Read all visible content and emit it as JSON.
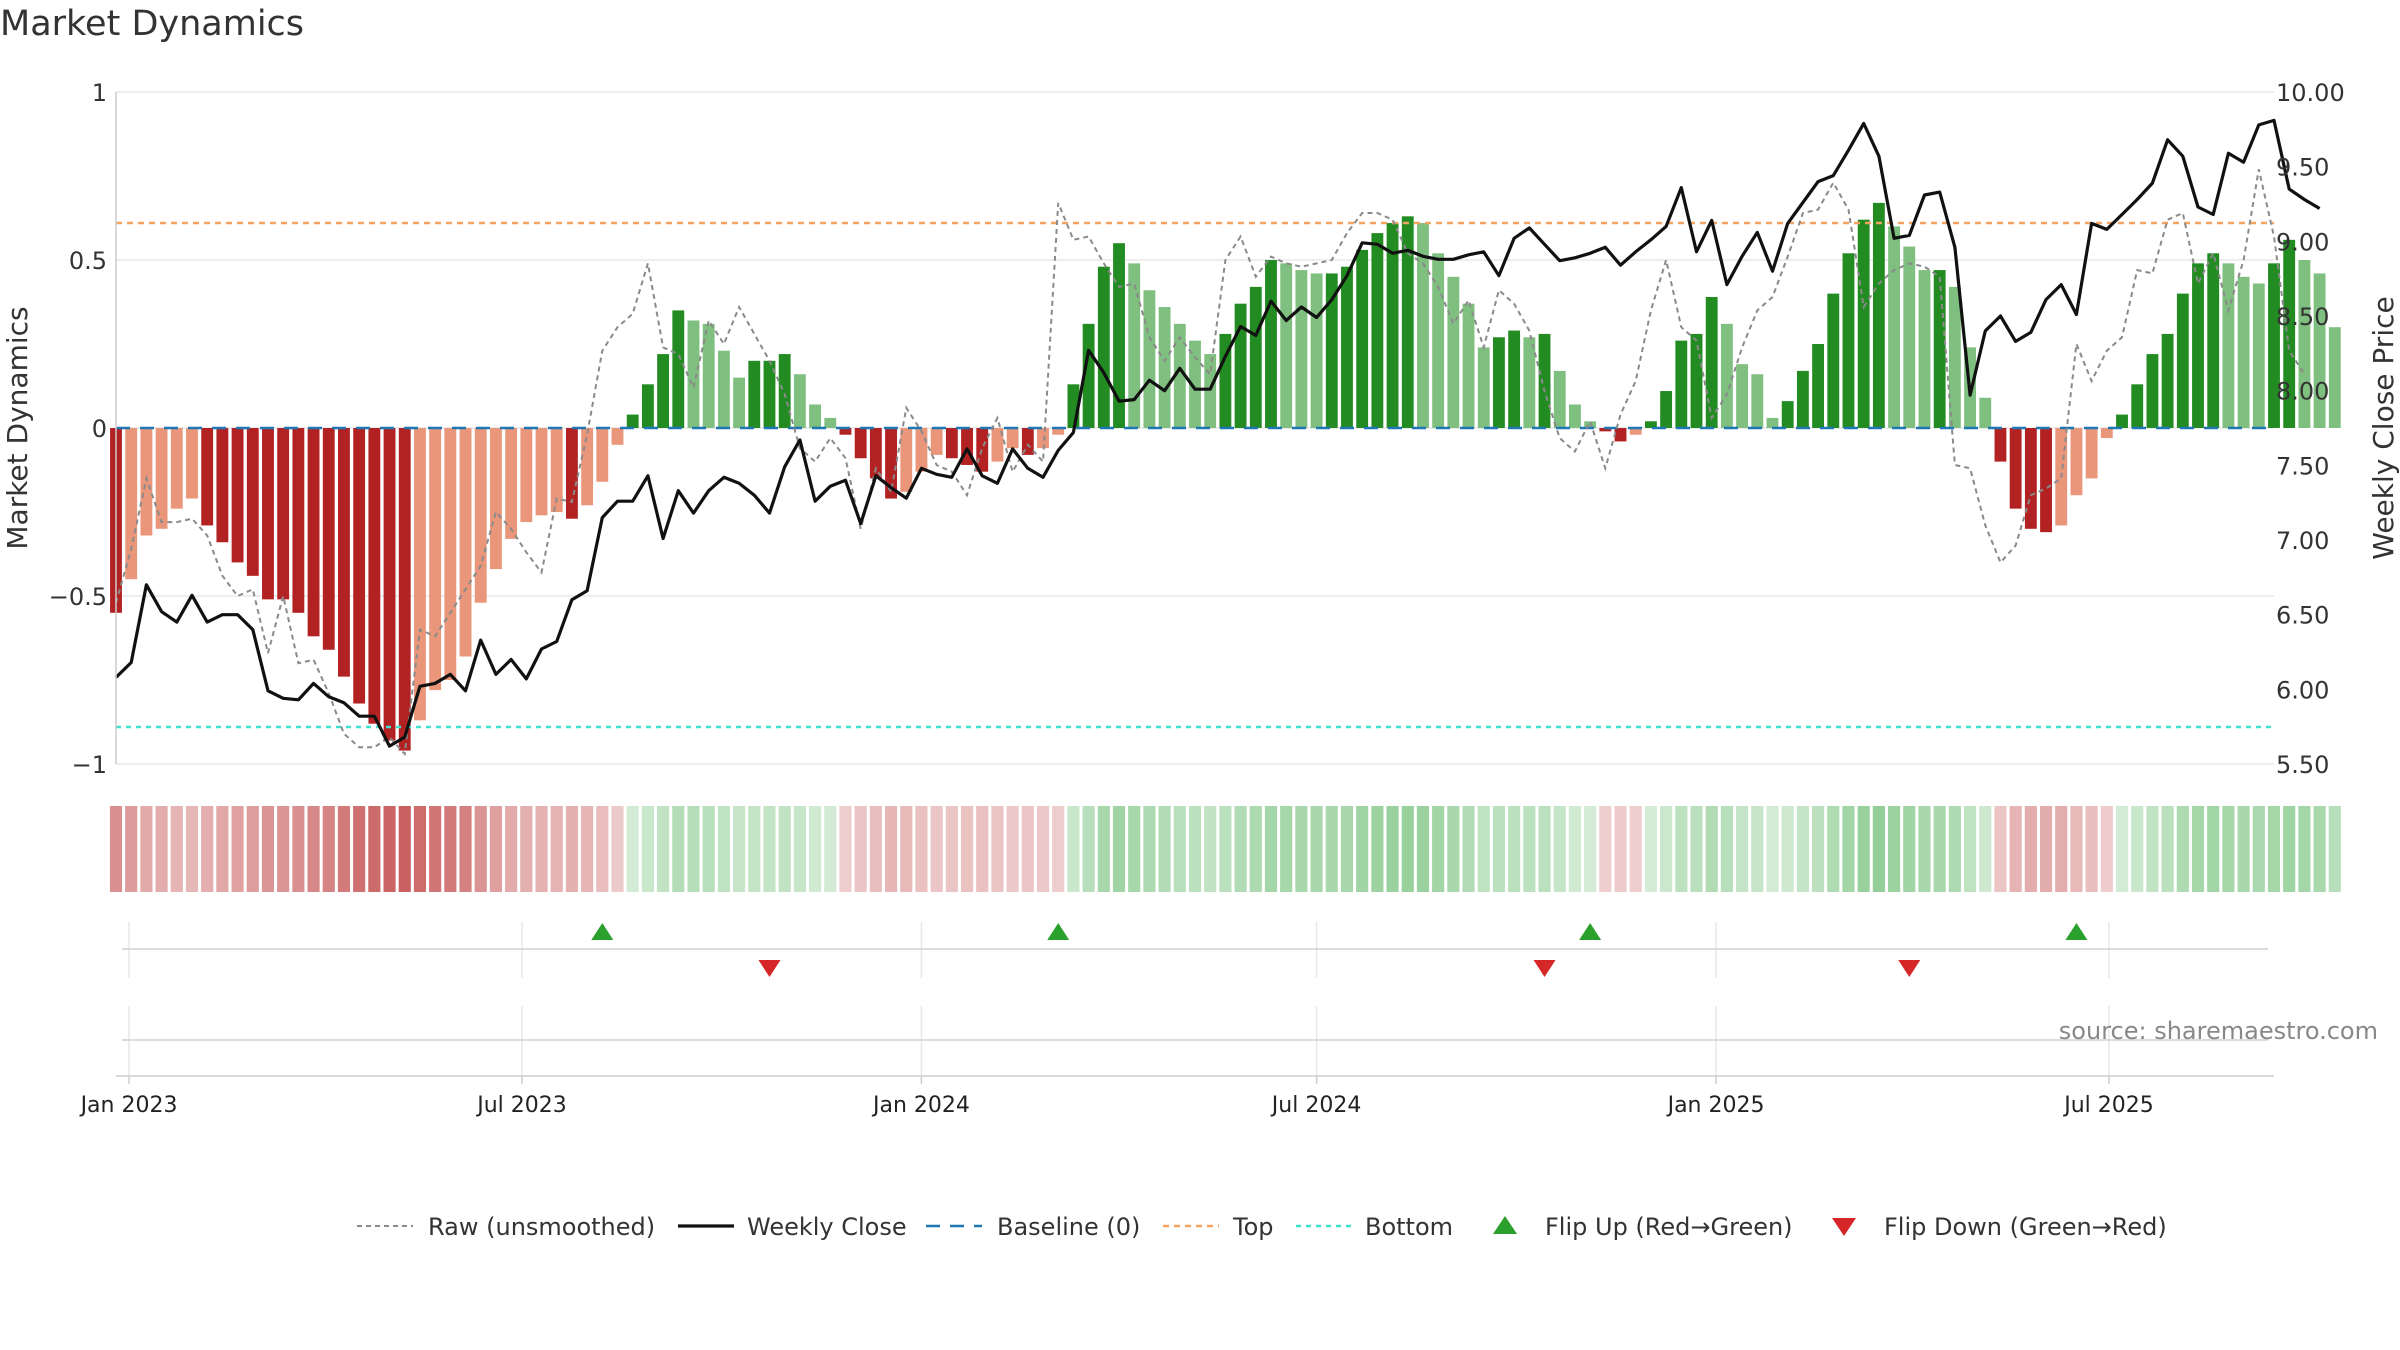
{
  "chart_data": {
    "type": "bar",
    "title": "Market Dynamics",
    "ylabel_left": "Market Dynamics",
    "ylabel_right": "Weekly Close Price",
    "ylim_left": [
      -1,
      1
    ],
    "ylim_right": [
      5.5,
      10.0
    ],
    "yticks_left": [
      {
        "value": 1,
        "label": "1"
      },
      {
        "value": 0.5,
        "label": "0.5"
      },
      {
        "value": 0,
        "label": "0"
      },
      {
        "value": -0.5,
        "label": "−0.5"
      },
      {
        "value": -1,
        "label": "−1"
      }
    ],
    "yticks_right": [
      {
        "value": 10.0,
        "label": "10.00"
      },
      {
        "value": 9.5,
        "label": "9.50"
      },
      {
        "value": 9.0,
        "label": "9.00"
      },
      {
        "value": 8.5,
        "label": "8.50"
      },
      {
        "value": 8.0,
        "label": "8.00"
      },
      {
        "value": 7.5,
        "label": "7.50"
      },
      {
        "value": 7.0,
        "label": "7.00"
      },
      {
        "value": 6.5,
        "label": "6.50"
      },
      {
        "value": 6.0,
        "label": "6.00"
      },
      {
        "value": 5.5,
        "label": "5.50"
      }
    ],
    "x_start": "2022-12-26",
    "x_end": "2025-09-15",
    "week_start": "2022-12-26",
    "xticks": [
      {
        "date": "2023-01-01",
        "label": "Jan 2023"
      },
      {
        "date": "2023-07-01",
        "label": "Jul 2023"
      },
      {
        "date": "2024-01-01",
        "label": "Jan 2024"
      },
      {
        "date": "2024-07-01",
        "label": "Jul 2024"
      },
      {
        "date": "2025-01-01",
        "label": "Jan 2025"
      },
      {
        "date": "2025-07-01",
        "label": "Jul 2025"
      }
    ],
    "top_level": 0.61,
    "bottom_level": -0.89,
    "baseline": 0,
    "colors": {
      "strong_red": "#b22222",
      "light_red": "#e9967a",
      "strong_green": "#228b22",
      "light_green": "#7fbf7f",
      "raw": "#8a8a8a",
      "close": "#111111",
      "baseline": "#1f77b4",
      "top": "#f4a460",
      "bottom": "#40e0d0",
      "flip_up": "#2ca02c",
      "flip_down": "#d62728",
      "grid": "#e8e8e8",
      "axis": "#cccccc"
    },
    "series": [
      {
        "name": "Market Dynamics",
        "values": [
          -0.55,
          -0.45,
          -0.32,
          -0.3,
          -0.24,
          -0.21,
          -0.29,
          -0.34,
          -0.4,
          -0.44,
          -0.51,
          -0.51,
          -0.55,
          -0.62,
          -0.66,
          -0.74,
          -0.82,
          -0.88,
          -0.93,
          -0.96,
          -0.87,
          -0.78,
          -0.75,
          -0.68,
          -0.52,
          -0.42,
          -0.33,
          -0.28,
          -0.26,
          -0.25,
          -0.27,
          -0.23,
          -0.16,
          -0.05,
          0.04,
          0.13,
          0.22,
          0.35,
          0.32,
          0.31,
          0.23,
          0.15,
          0.2,
          0.2,
          0.22,
          0.16,
          0.07,
          0.03,
          -0.02,
          -0.09,
          -0.15,
          -0.21,
          -0.19,
          -0.13,
          -0.08,
          -0.09,
          -0.11,
          -0.13,
          -0.1,
          -0.06,
          -0.08,
          -0.06,
          -0.02,
          0.13,
          0.31,
          0.48,
          0.55,
          0.49,
          0.41,
          0.36,
          0.31,
          0.26,
          0.22,
          0.28,
          0.37,
          0.42,
          0.5,
          0.49,
          0.47,
          0.46,
          0.46,
          0.48,
          0.53,
          0.58,
          0.61,
          0.63,
          0.61,
          0.52,
          0.45,
          0.37,
          0.24,
          0.27,
          0.29,
          0.27,
          0.28,
          0.17,
          0.07,
          0.02,
          -0.01,
          -0.04,
          -0.02,
          0.02,
          0.11,
          0.26,
          0.28,
          0.39,
          0.31,
          0.19,
          0.16,
          0.03,
          0.08,
          0.17,
          0.25,
          0.4,
          0.52,
          0.62,
          0.67,
          0.6,
          0.54,
          0.47,
          0.47,
          0.42,
          0.24,
          0.09,
          -0.1,
          -0.24,
          -0.3,
          -0.31,
          -0.29,
          -0.2,
          -0.15,
          -0.03,
          0.04,
          0.13,
          0.22,
          0.28,
          0.4,
          0.49,
          0.52,
          0.49,
          0.45,
          0.43,
          0.49,
          0.56,
          0.5,
          0.46,
          0.3
        ]
      },
      {
        "name": "Raw (unsmoothed)",
        "values": [
          -0.52,
          -0.36,
          -0.15,
          -0.28,
          -0.28,
          -0.27,
          -0.32,
          -0.44,
          -0.5,
          -0.48,
          -0.67,
          -0.5,
          -0.7,
          -0.69,
          -0.79,
          -0.91,
          -0.95,
          -0.95,
          -0.92,
          -0.97,
          -0.6,
          -0.62,
          -0.55,
          -0.48,
          -0.41,
          -0.25,
          -0.3,
          -0.37,
          -0.43,
          -0.21,
          -0.22,
          -0.02,
          0.23,
          0.3,
          0.34,
          0.49,
          0.24,
          0.22,
          0.12,
          0.32,
          0.25,
          0.36,
          0.28,
          0.2,
          0.1,
          -0.06,
          -0.1,
          -0.03,
          -0.09,
          -0.3,
          -0.12,
          -0.19,
          0.06,
          -0.01,
          -0.11,
          -0.13,
          -0.2,
          -0.06,
          0.03,
          -0.13,
          -0.05,
          -0.1,
          0.67,
          0.56,
          0.57,
          0.49,
          0.42,
          0.43,
          0.27,
          0.2,
          0.27,
          0.21,
          0.16,
          0.5,
          0.57,
          0.45,
          0.51,
          0.49,
          0.48,
          0.49,
          0.5,
          0.58,
          0.64,
          0.64,
          0.62,
          0.52,
          0.49,
          0.42,
          0.31,
          0.38,
          0.24,
          0.41,
          0.37,
          0.29,
          0.11,
          -0.03,
          -0.07,
          0.02,
          -0.12,
          0.04,
          0.14,
          0.35,
          0.5,
          0.3,
          0.26,
          0.03,
          0.1,
          0.24,
          0.35,
          0.39,
          0.51,
          0.64,
          0.65,
          0.73,
          0.65,
          0.36,
          0.43,
          0.47,
          0.49,
          0.48,
          0.45,
          -0.11,
          -0.12,
          -0.29,
          -0.4,
          -0.35,
          -0.2,
          -0.18,
          -0.15,
          0.25,
          0.14,
          0.23,
          0.27,
          0.47,
          0.46,
          0.62,
          0.64,
          0.43,
          0.52,
          0.35,
          0.5,
          0.77,
          0.57,
          0.23,
          0.16
        ]
      },
      {
        "name": "Weekly Close",
        "values": [
          6.08,
          6.18,
          6.7,
          6.52,
          6.45,
          6.63,
          6.45,
          6.5,
          6.5,
          6.4,
          5.99,
          5.94,
          5.93,
          6.04,
          5.95,
          5.91,
          5.82,
          5.82,
          5.62,
          5.68,
          6.02,
          6.04,
          6.1,
          5.99,
          6.33,
          6.1,
          6.2,
          6.07,
          6.27,
          6.32,
          6.6,
          6.66,
          7.15,
          7.26,
          7.26,
          7.43,
          7.01,
          7.33,
          7.18,
          7.33,
          7.42,
          7.38,
          7.3,
          7.18,
          7.49,
          7.67,
          7.26,
          7.36,
          7.4,
          7.11,
          7.43,
          7.35,
          7.28,
          7.48,
          7.44,
          7.42,
          7.61,
          7.43,
          7.38,
          7.61,
          7.48,
          7.42,
          7.6,
          7.72,
          8.27,
          8.12,
          7.93,
          7.94,
          8.07,
          8.0,
          8.15,
          8.01,
          8.01,
          8.23,
          8.43,
          8.37,
          8.6,
          8.47,
          8.56,
          8.49,
          8.61,
          8.77,
          8.99,
          8.98,
          8.92,
          8.94,
          8.9,
          8.88,
          8.88,
          8.91,
          8.93,
          8.77,
          9.02,
          9.09,
          8.98,
          8.87,
          8.89,
          8.92,
          8.96,
          8.84,
          8.93,
          9.01,
          9.1,
          9.36,
          8.93,
          9.14,
          8.71,
          8.9,
          9.06,
          8.8,
          9.12,
          9.26,
          9.4,
          9.44,
          9.61,
          9.79,
          9.57,
          9.02,
          9.04,
          9.31,
          9.33,
          8.96,
          7.97,
          8.4,
          8.5,
          8.33,
          8.39,
          8.61,
          8.71,
          8.51,
          9.12,
          9.08,
          9.18,
          9.28,
          9.39,
          9.68,
          9.57,
          9.23,
          9.18,
          9.59,
          9.53,
          9.78,
          9.81,
          9.35,
          9.28,
          9.22
        ]
      }
    ],
    "legend_position": "bottom",
    "legend": [
      "Raw (unsmoothed)",
      "Weekly Close",
      "Baseline (0)",
      "Top",
      "Bottom",
      "Flip Up (Red→Green)",
      "Flip Down (Green→Red)"
    ],
    "flips_up": [
      "2023-08-07",
      "2024-03-04",
      "2024-11-04",
      "2025-06-16"
    ],
    "flips_down": [
      "2023-10-23",
      "2024-10-14",
      "2025-03-31"
    ],
    "grid": true,
    "source": "source: sharemaestro.com"
  }
}
